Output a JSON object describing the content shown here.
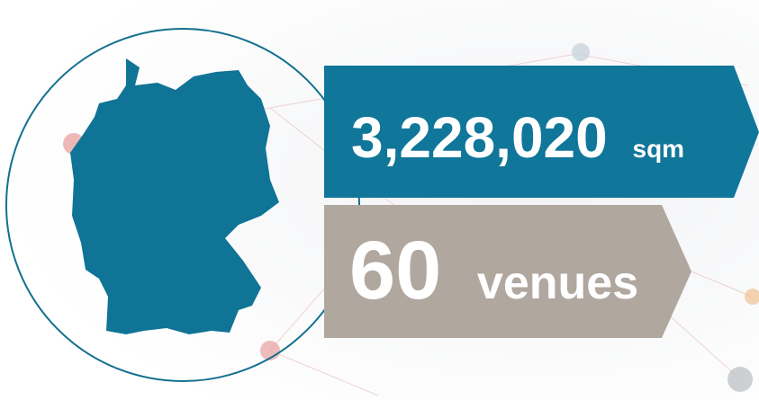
{
  "stats": [
    {
      "value": "3,228,020",
      "unit": "sqm"
    },
    {
      "value": "60",
      "unit": "venues"
    }
  ]
}
